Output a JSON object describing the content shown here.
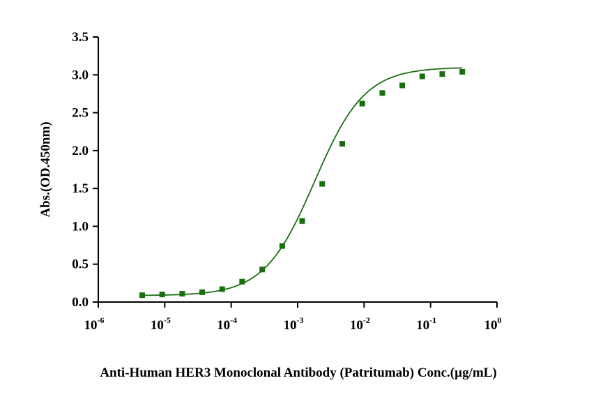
{
  "chart_data": {
    "type": "scatter",
    "title": "",
    "xlabel": "Anti-Human HER3 Monoclonal Antibody (Patritumab) Conc.(µg/mL)",
    "ylabel": "Abs.(OD.450nm)",
    "xscale": "log",
    "xlim": [
      1e-06,
      1
    ],
    "ylim": [
      0,
      3.5
    ],
    "x_ticks": [
      {
        "base": "10",
        "exp": "-6"
      },
      {
        "base": "10",
        "exp": "-5"
      },
      {
        "base": "10",
        "exp": "-4"
      },
      {
        "base": "10",
        "exp": "-3"
      },
      {
        "base": "10",
        "exp": "-2"
      },
      {
        "base": "10",
        "exp": "-1"
      },
      {
        "base": "10",
        "exp": "0"
      }
    ],
    "y_ticks": [
      "0.0",
      "0.5",
      "1.0",
      "1.5",
      "2.0",
      "2.5",
      "3.0",
      "3.5"
    ],
    "grid": false,
    "series": [
      {
        "color": "#1a6e10",
        "marker": "square",
        "fit": "4PL sigmoid",
        "points": [
          {
            "x": 4.58e-06,
            "y": 0.09
          },
          {
            "x": 9.16e-06,
            "y": 0.1
          },
          {
            "x": 1.83e-05,
            "y": 0.11
          },
          {
            "x": 3.66e-05,
            "y": 0.13
          },
          {
            "x": 7.32e-05,
            "y": 0.17
          },
          {
            "x": 0.000146,
            "y": 0.27
          },
          {
            "x": 0.000293,
            "y": 0.43
          },
          {
            "x": 0.000586,
            "y": 0.74
          },
          {
            "x": 0.00117,
            "y": 1.07
          },
          {
            "x": 0.00234,
            "y": 1.56
          },
          {
            "x": 0.00469,
            "y": 2.09
          },
          {
            "x": 0.00938,
            "y": 2.62
          },
          {
            "x": 0.0188,
            "y": 2.76
          },
          {
            "x": 0.0375,
            "y": 2.86
          },
          {
            "x": 0.075,
            "y": 2.98
          },
          {
            "x": 0.15,
            "y": 3.01
          },
          {
            "x": 0.3,
            "y": 3.04
          }
        ]
      }
    ]
  }
}
